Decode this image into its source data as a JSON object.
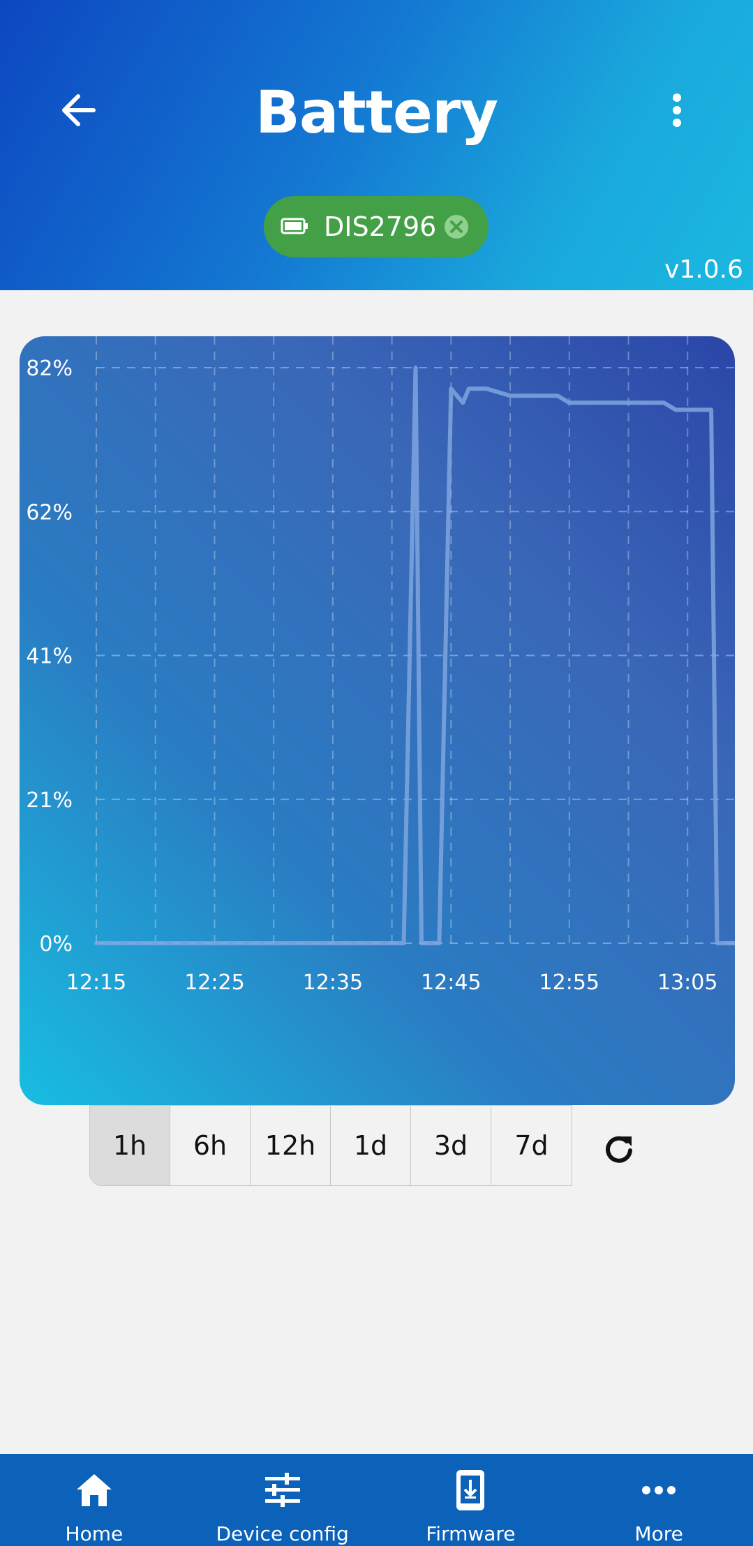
{
  "header": {
    "title": "Battery",
    "device_chip": "DIS2796",
    "version": "v1.0.6",
    "back_icon": "arrow-left-icon",
    "menu_icon": "more-vertical-icon"
  },
  "colors": {
    "header_start": "#0d47c1",
    "header_end": "#1bb8e0",
    "chip": "#43a047",
    "nav": "#0b62b8",
    "series_line": "#7fa6dd"
  },
  "chart_data": {
    "type": "line",
    "title": "",
    "xlabel": "",
    "ylabel": "",
    "y_tick_labels": [
      "82%",
      "62%",
      "41%",
      "21%",
      "0%"
    ],
    "x_tick_labels": [
      "12:15",
      "12:25",
      "12:35",
      "12:45",
      "12:55",
      "13:05"
    ],
    "ylim": [
      0,
      82
    ],
    "xlim": [
      "12:15",
      "13:09"
    ],
    "grid": true,
    "series": [
      {
        "x": [
          "12:15",
          "12:41",
          "12:42",
          "12:42.5",
          "12:43",
          "12:44",
          "12:45",
          "12:46",
          "12:46.5",
          "12:47",
          "12:48",
          "12:50",
          "12:51",
          "12:54",
          "12:55",
          "12:59",
          "13:00",
          "13:03",
          "13:04",
          "13:07",
          "13:07.5",
          "13:08",
          "13:09"
        ],
        "values": [
          0,
          0,
          82,
          0,
          0,
          0,
          79,
          77,
          79,
          79,
          79,
          78,
          78,
          78,
          77,
          77,
          77,
          77,
          76,
          76,
          0,
          0,
          0
        ]
      }
    ]
  },
  "ranges": {
    "options": [
      "1h",
      "6h",
      "12h",
      "1d",
      "3d",
      "7d"
    ],
    "selected": "1h",
    "refresh_icon": "refresh-icon"
  },
  "nav": {
    "items": [
      {
        "label": "Home",
        "icon": "home-icon"
      },
      {
        "label": "Device config",
        "icon": "sliders-icon"
      },
      {
        "label": "Firmware",
        "icon": "firmware-download-icon"
      },
      {
        "label": "More",
        "icon": "more-horizontal-icon"
      }
    ]
  }
}
